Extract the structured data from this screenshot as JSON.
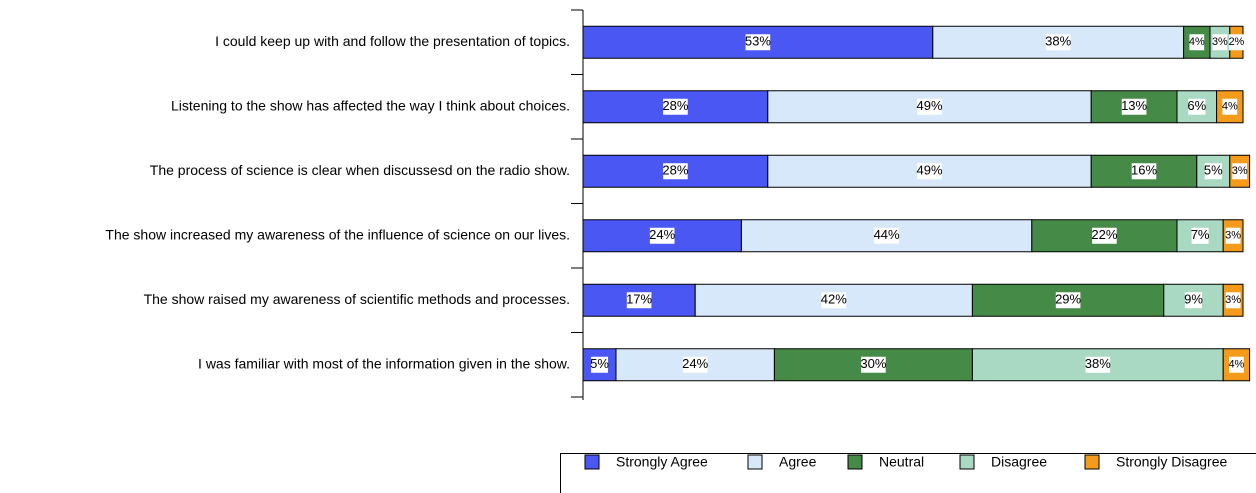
{
  "chart_data": {
    "type": "stacked_barh",
    "categories": [
      "I could keep up with and follow the presentation of topics.",
      "Listening to the show has affected the way I think about choices.",
      "The process of science is clear when discussesd on the radio show.",
      "The show increased my awareness of the influence of science on our lives.",
      "The show raised my awareness of scientific methods and processes.",
      "I was familiar with most of the information given in the show."
    ],
    "xlim": [
      0,
      100
    ],
    "legend": "bottom",
    "series": [
      {
        "name": "Strongly Agree",
        "color": "#4a57f2",
        "values": [
          53,
          28,
          28,
          24,
          17,
          5
        ],
        "value_labels": [
          "53%",
          "28%",
          "28%",
          "24%",
          "17%",
          "5%"
        ]
      },
      {
        "name": "Agree",
        "color": "#d8e8fb",
        "values": [
          38,
          49,
          49,
          44,
          42,
          24
        ],
        "value_labels": [
          "38%",
          "49%",
          "49%",
          "44%",
          "42%",
          "24%"
        ]
      },
      {
        "name": "Neutral",
        "color": "#468a47",
        "values": [
          4,
          13,
          16,
          22,
          29,
          30
        ],
        "value_labels": [
          "4%",
          "13%",
          "16%",
          "22%",
          "29%",
          "30%"
        ]
      },
      {
        "name": "Disagree",
        "color": "#a9d9c2",
        "values": [
          3,
          6,
          5,
          7,
          9,
          38
        ],
        "value_labels": [
          "3%",
          "6%",
          "5%",
          "7%",
          "9%",
          "38%"
        ]
      },
      {
        "name": "Strongly Disagree",
        "color": "#f59b1c",
        "values": [
          2,
          4,
          3,
          3,
          3,
          4
        ],
        "value_labels": [
          "2%",
          "4%",
          "3%",
          "3%",
          "3%",
          "4%"
        ]
      }
    ]
  }
}
